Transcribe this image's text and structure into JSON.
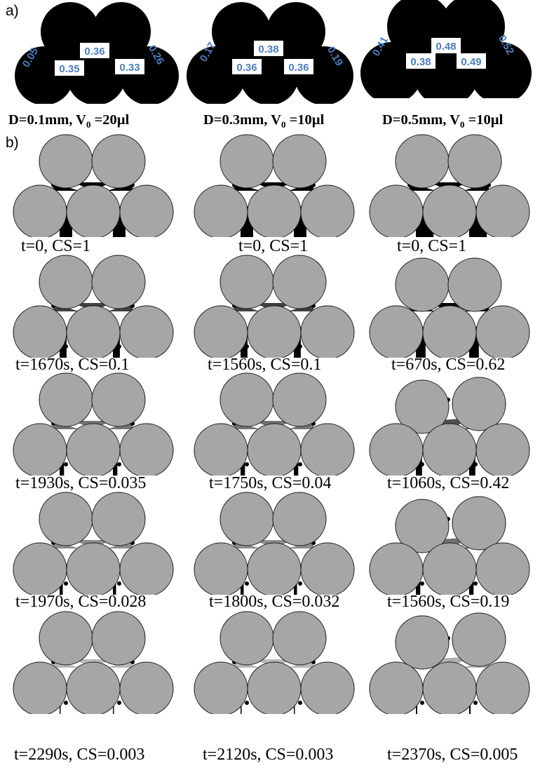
{
  "panel_a": {
    "label": "a)",
    "columns": [
      {
        "caption": {
          "pre": "D=0.1mm, V",
          "sub": "0",
          "post": " =20µl"
        },
        "values": {
          "left": "0.05",
          "top": "0.36",
          "right": "0.26",
          "bottom_left": "0.35",
          "bottom_right": "0.33"
        }
      },
      {
        "caption": {
          "pre": "D=0.3mm, V",
          "sub": "0",
          "post": " =10µl"
        },
        "values": {
          "left": "0.17",
          "top": "0.38",
          "right": "0.19",
          "bottom_left": "0.36",
          "bottom_right": "0.36"
        }
      },
      {
        "caption": {
          "pre": "D=0.5mm, V",
          "sub": "0",
          "post": " =10µl"
        },
        "values": {
          "left": "0.41",
          "top": "0.48",
          "right": "0.52",
          "bottom_left": "0.38",
          "bottom_right": "0.49"
        }
      }
    ],
    "colors": {
      "particle": "#000000",
      "value_text": "#4a7fc0"
    }
  },
  "panel_b": {
    "label": "b)",
    "rows": [
      [
        "t=0, CS=1",
        "t=0, CS=1",
        "t=0, CS=1"
      ],
      [
        "t=1670s, CS=0.1",
        "t=1560s, CS=0.1",
        "t=670s, CS=0.62"
      ],
      [
        "t=1930s, CS=0.035",
        "t=1750s, CS=0.04",
        "t=1060s, CS=0.42"
      ],
      [
        "t=1970s, CS=0.028",
        "t=1800s, CS=0.032",
        "t=1560s, CS=0.19"
      ],
      [
        "t=2290s, CS=0.003",
        "t=2120s, CS=0.003",
        "t=2370s, CS=0.005"
      ]
    ],
    "colors": {
      "particle": "#a6a6a6",
      "liquid": "#000000"
    }
  }
}
